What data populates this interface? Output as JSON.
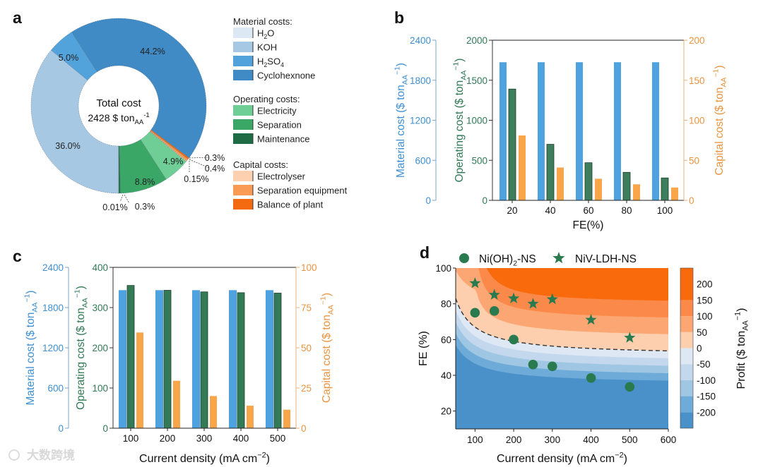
{
  "panel_labels": [
    "a",
    "b",
    "c",
    "d"
  ],
  "watermark": "大数跨境",
  "chart_data": [
    {
      "type": "pie",
      "donut": true,
      "center_title": "Total cost",
      "center_value": [
        {
          "t": "2428 $ ton"
        },
        {
          "t": "AA",
          "sub": true
        },
        {
          "t": "-1",
          "sup": true
        }
      ],
      "legend_groups": [
        {
          "title": "Material costs:",
          "items": [
            {
              "parts": [
                {
                  "t": "H"
                },
                {
                  "t": "2",
                  "sub": true
                },
                {
                  "t": "O"
                }
              ],
              "color": "#dce9f5"
            },
            {
              "parts": [
                {
                  "t": "KOH"
                }
              ],
              "color": "#a6c8e3"
            },
            {
              "parts": [
                {
                  "t": "H"
                },
                {
                  "t": "2",
                  "sub": true
                },
                {
                  "t": "SO"
                },
                {
                  "t": "4",
                  "sub": true
                }
              ],
              "color": "#52a3dc"
            },
            {
              "parts": [
                {
                  "t": "Cyclohexnone"
                }
              ],
              "color": "#408bc5"
            }
          ]
        },
        {
          "title": "Operating costs:",
          "items": [
            {
              "parts": [
                {
                  "t": "Electricity"
                }
              ],
              "color": "#6fce96"
            },
            {
              "parts": [
                {
                  "t": "Separation"
                }
              ],
              "color": "#3aa766"
            },
            {
              "parts": [
                {
                  "t": "Maintenance"
                }
              ],
              "color": "#1f6b45"
            }
          ]
        },
        {
          "title": "Capital costs:",
          "items": [
            {
              "parts": [
                {
                  "t": "Electrolyser"
                }
              ],
              "color": "#fdd0b0"
            },
            {
              "parts": [
                {
                  "t": "Separation equipment"
                }
              ],
              "color": "#f99a55"
            },
            {
              "parts": [
                {
                  "t": "Balance of plant"
                }
              ],
              "color": "#f46a10"
            }
          ]
        }
      ],
      "slices": [
        {
          "group": 0,
          "item": 1,
          "value": 36.0,
          "label": "36.0%"
        },
        {
          "group": 0,
          "item": 2,
          "value": 5.0,
          "label": "5.0%"
        },
        {
          "group": 0,
          "item": 3,
          "value": 44.2,
          "label": "44.2%"
        },
        {
          "group": 2,
          "item": 2,
          "value": 0.3,
          "label": "0.3%"
        },
        {
          "group": 2,
          "item": 1,
          "value": 0.4,
          "label": "0.4%"
        },
        {
          "group": 2,
          "item": 0,
          "value": 0.15,
          "label": "0.15%"
        },
        {
          "group": 1,
          "item": 0,
          "value": 4.9,
          "label": "4.9%"
        },
        {
          "group": 1,
          "item": 1,
          "value": 8.8,
          "label": "8.8%"
        },
        {
          "group": 1,
          "item": 2,
          "value": 0.3,
          "label": "0.3%"
        },
        {
          "group": 0,
          "item": 0,
          "value": 0.01,
          "label": "0.01%"
        }
      ]
    },
    {
      "type": "bar",
      "categories": [
        "20",
        "40",
        "60",
        "80",
        "100"
      ],
      "xlabel": "FE(%)",
      "axes": {
        "material": {
          "label": [
            {
              "t": "Material cost ($ ton"
            },
            {
              "t": "AA",
              "sub": true
            },
            {
              "t": "−1",
              "sup": true
            },
            {
              "t": ")"
            }
          ],
          "range": [
            0,
            2400
          ],
          "ticks": [
            0,
            600,
            1200,
            1800,
            2400
          ],
          "color": "#3f8fd2"
        },
        "operating": {
          "label": [
            {
              "t": "Operating cost ($ ton"
            },
            {
              "t": "AA",
              "sub": true
            },
            {
              "t": "−1",
              "sup": true
            },
            {
              "t": ")"
            }
          ],
          "range": [
            0,
            2000
          ],
          "ticks": [
            0,
            500,
            1000,
            1500,
            2000
          ],
          "color": "#2f7a55"
        },
        "capital": {
          "label": [
            {
              "t": "Capital cost ($ ton"
            },
            {
              "t": "AA",
              "sub": true
            },
            {
              "t": "−1",
              "sup": true
            },
            {
              "t": ")"
            }
          ],
          "range": [
            0,
            200
          ],
          "ticks": [
            0,
            50,
            100,
            150,
            200
          ],
          "color": "#ea9440"
        }
      },
      "series": [
        {
          "axis": "material",
          "values": [
            2070,
            2070,
            2070,
            2070,
            2070
          ],
          "color": "#4ea2e0"
        },
        {
          "axis": "operating",
          "values": [
            1390,
            700,
            470,
            350,
            280
          ],
          "color": "#3e7e5d"
        },
        {
          "axis": "capital",
          "values": [
            81,
            41,
            27,
            20,
            16
          ],
          "color": "#f9a64a"
        }
      ]
    },
    {
      "type": "bar",
      "categories": [
        "100",
        "200",
        "300",
        "400",
        "500"
      ],
      "xlabel": [
        {
          "t": "Current density (mA cm"
        },
        {
          "t": "−2",
          "sup": true
        },
        {
          "t": ")"
        }
      ],
      "axes": {
        "material": {
          "label": [
            {
              "t": "Material cost ($ ton"
            },
            {
              "t": "AA",
              "sub": true
            },
            {
              "t": "−1",
              "sup": true
            },
            {
              "t": ")"
            }
          ],
          "range": [
            0,
            2400
          ],
          "ticks": [
            0,
            600,
            1200,
            1800,
            2400
          ],
          "color": "#3f8fd2"
        },
        "operating": {
          "label": [
            {
              "t": "Operating cost ($ ton"
            },
            {
              "t": "AA",
              "sub": true
            },
            {
              "t": "−1",
              "sup": true
            },
            {
              "t": ")"
            }
          ],
          "range": [
            0,
            400
          ],
          "ticks": [
            0,
            100,
            200,
            300,
            400
          ],
          "color": "#2f7a55"
        },
        "capital": {
          "label": [
            {
              "t": "Capital cost ($ ton"
            },
            {
              "t": "AA",
              "sub": true
            },
            {
              "t": "−1",
              "sup": true
            },
            {
              "t": ")"
            }
          ],
          "range": [
            0,
            100
          ],
          "ticks": [
            0,
            25,
            50,
            75,
            100
          ],
          "color": "#ea9440"
        }
      },
      "series": [
        {
          "axis": "material",
          "values": [
            2060,
            2060,
            2060,
            2060,
            2060
          ],
          "color": "#4ea2e0"
        },
        {
          "axis": "operating",
          "values": [
            355,
            343,
            339,
            337,
            336
          ],
          "color": "#357a56"
        },
        {
          "axis": "capital",
          "values": [
            59.5,
            29.5,
            20,
            14,
            11.5
          ],
          "color": "#f9a64a"
        }
      ]
    },
    {
      "type": "heatmap",
      "subtype": "filled-contour",
      "xlabel": [
        {
          "t": "Current density (mA cm"
        },
        {
          "t": "−2",
          "sup": true
        },
        {
          "t": ")"
        }
      ],
      "ylabel": "FE (%)",
      "xlim": [
        50,
        600
      ],
      "ylim": [
        10,
        100
      ],
      "xticks": [
        100,
        200,
        300,
        400,
        500,
        600
      ],
      "yticks": [
        20,
        40,
        60,
        80,
        100
      ],
      "colorbar": {
        "label": [
          {
            "t": "Profit ($ ton"
          },
          {
            "t": "AA",
            "sub": true
          },
          {
            "t": "−1",
            "sup": true
          },
          {
            "t": ")"
          }
        ],
        "range": [
          -250,
          250
        ],
        "ticks": [
          200,
          150,
          100,
          50,
          0,
          -50,
          -100,
          -150,
          -200
        ],
        "levels": [
          -200,
          -150,
          -100,
          -50,
          0,
          50,
          100,
          150
        ],
        "colors": [
          "#4a91c9",
          "#6eabd8",
          "#9fc6e2",
          "#c3d7ed",
          "#dde8f4",
          "#fdcfae",
          "#fca773",
          "#fb8a4a",
          "#f96a0c"
        ]
      },
      "breakeven_contour": {
        "level": 0,
        "style": "dashed"
      },
      "series": [
        {
          "name": [
            {
              "t": "Ni(OH)"
            },
            {
              "t": "2",
              "sub": true
            },
            {
              "t": "-NS"
            }
          ],
          "marker": "circle",
          "color": "#2a7a4f",
          "points": [
            [
              100,
              75
            ],
            [
              150,
              76
            ],
            [
              200,
              60
            ],
            [
              250,
              46
            ],
            [
              300,
              45
            ],
            [
              400,
              38.5
            ],
            [
              500,
              33.5
            ]
          ]
        },
        {
          "name": [
            {
              "t": "NiV-LDH-NS"
            }
          ],
          "marker": "star",
          "color": "#2a7a4f",
          "points": [
            [
              100,
              91.5
            ],
            [
              150,
              85
            ],
            [
              200,
              83
            ],
            [
              250,
              80
            ],
            [
              300,
              82.5
            ],
            [
              400,
              71
            ],
            [
              500,
              61
            ]
          ]
        }
      ]
    }
  ]
}
